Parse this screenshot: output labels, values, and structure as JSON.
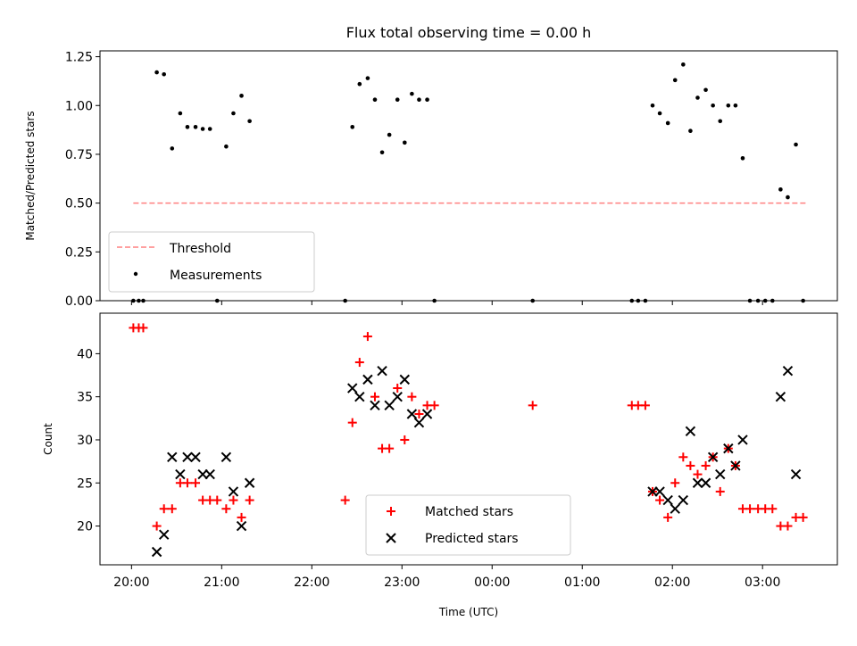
{
  "chart_data": [
    {
      "type": "scatter",
      "title": "Flux total observing time = 0.00 h",
      "xlabel": "",
      "ylabel": "Matched/Predicted stars",
      "x_unit": "time of day (UTC, hours; values above 24 are after midnight)",
      "xlim": [
        19.65,
        27.83
      ],
      "ylim": [
        0,
        1.28
      ],
      "x_ticks": [
        20,
        21,
        22,
        23,
        24,
        25,
        26,
        27
      ],
      "y_ticks": [
        0,
        0.25,
        0.5,
        0.75,
        1.0,
        1.25
      ],
      "y_tick_labels": [
        "0.00",
        "0.25",
        "0.50",
        "0.75",
        "1.00",
        "1.25"
      ],
      "legend_position": "lower-left",
      "series": [
        {
          "name": "Threshold",
          "style": "dashed-line",
          "color": "#ff8080",
          "points": [
            [
              20.02,
              0.5
            ],
            [
              27.48,
              0.5
            ]
          ]
        },
        {
          "name": "Measurements",
          "style": "dot",
          "color": "#000000",
          "points": [
            [
              20.02,
              0.0
            ],
            [
              20.08,
              0.0
            ],
            [
              20.13,
              0.0
            ],
            [
              20.28,
              1.17
            ],
            [
              20.36,
              1.16
            ],
            [
              20.45,
              0.78
            ],
            [
              20.54,
              0.96
            ],
            [
              20.62,
              0.89
            ],
            [
              20.71,
              0.89
            ],
            [
              20.79,
              0.88
            ],
            [
              20.87,
              0.88
            ],
            [
              20.95,
              0.0
            ],
            [
              21.05,
              0.79
            ],
            [
              21.13,
              0.96
            ],
            [
              21.22,
              1.05
            ],
            [
              21.31,
              0.92
            ],
            [
              22.37,
              0.0
            ],
            [
              22.45,
              0.89
            ],
            [
              22.53,
              1.11
            ],
            [
              22.62,
              1.14
            ],
            [
              22.7,
              1.03
            ],
            [
              22.78,
              0.76
            ],
            [
              22.86,
              0.85
            ],
            [
              22.95,
              1.03
            ],
            [
              23.03,
              0.81
            ],
            [
              23.11,
              1.06
            ],
            [
              23.19,
              1.03
            ],
            [
              23.28,
              1.03
            ],
            [
              23.36,
              0.0
            ],
            [
              24.45,
              0.0
            ],
            [
              25.55,
              0.0
            ],
            [
              25.62,
              0.0
            ],
            [
              25.7,
              0.0
            ],
            [
              25.78,
              1.0
            ],
            [
              25.86,
              0.96
            ],
            [
              25.95,
              0.91
            ],
            [
              26.03,
              1.13
            ],
            [
              26.12,
              1.21
            ],
            [
              26.2,
              0.87
            ],
            [
              26.28,
              1.04
            ],
            [
              26.37,
              1.08
            ],
            [
              26.45,
              1.0
            ],
            [
              26.53,
              0.92
            ],
            [
              26.62,
              1.0
            ],
            [
              26.7,
              1.0
            ],
            [
              26.78,
              0.73
            ],
            [
              26.86,
              0.0
            ],
            [
              26.95,
              0.0
            ],
            [
              27.03,
              0.0
            ],
            [
              27.11,
              0.0
            ],
            [
              27.2,
              0.57
            ],
            [
              27.28,
              0.53
            ],
            [
              27.37,
              0.8
            ],
            [
              27.45,
              0.0
            ]
          ]
        }
      ]
    },
    {
      "type": "scatter",
      "title": "",
      "xlabel": "Time (UTC)",
      "ylabel": "Count",
      "x_unit": "time of day (UTC, hours; values above 24 are after midnight)",
      "xlim": [
        19.65,
        27.83
      ],
      "ylim": [
        15.5,
        44.7
      ],
      "x_ticks": [
        20,
        21,
        22,
        23,
        24,
        25,
        26,
        27
      ],
      "x_tick_labels": [
        "20:00",
        "21:00",
        "22:00",
        "23:00",
        "00:00",
        "01:00",
        "02:00",
        "03:00"
      ],
      "y_ticks": [
        20,
        25,
        30,
        35,
        40
      ],
      "y_tick_labels": [
        "20",
        "25",
        "30",
        "35",
        "40"
      ],
      "legend_position": "lower-center",
      "series": [
        {
          "name": "Matched stars",
          "style": "plus",
          "color": "#ff0000",
          "points": [
            [
              20.02,
              43
            ],
            [
              20.08,
              43
            ],
            [
              20.13,
              43
            ],
            [
              20.28,
              20
            ],
            [
              20.36,
              22
            ],
            [
              20.45,
              22
            ],
            [
              20.54,
              25
            ],
            [
              20.62,
              25
            ],
            [
              20.71,
              25
            ],
            [
              20.79,
              23
            ],
            [
              20.87,
              23
            ],
            [
              20.95,
              23
            ],
            [
              21.05,
              22
            ],
            [
              21.13,
              23
            ],
            [
              21.22,
              21
            ],
            [
              21.31,
              23
            ],
            [
              22.37,
              23
            ],
            [
              22.45,
              32
            ],
            [
              22.53,
              39
            ],
            [
              22.62,
              42
            ],
            [
              22.7,
              35
            ],
            [
              22.78,
              29
            ],
            [
              22.86,
              29
            ],
            [
              22.95,
              36
            ],
            [
              23.03,
              30
            ],
            [
              23.11,
              35
            ],
            [
              23.19,
              33
            ],
            [
              23.28,
              34
            ],
            [
              23.36,
              34
            ],
            [
              24.45,
              34
            ],
            [
              25.55,
              34
            ],
            [
              25.62,
              34
            ],
            [
              25.7,
              34
            ],
            [
              25.78,
              24
            ],
            [
              25.86,
              23
            ],
            [
              25.95,
              21
            ],
            [
              26.03,
              25
            ],
            [
              26.12,
              28
            ],
            [
              26.2,
              27
            ],
            [
              26.28,
              26
            ],
            [
              26.37,
              27
            ],
            [
              26.45,
              28
            ],
            [
              26.53,
              24
            ],
            [
              26.62,
              29
            ],
            [
              26.7,
              27
            ],
            [
              26.78,
              22
            ],
            [
              26.86,
              22
            ],
            [
              26.95,
              22
            ],
            [
              27.03,
              22
            ],
            [
              27.11,
              22
            ],
            [
              27.2,
              20
            ],
            [
              27.28,
              20
            ],
            [
              27.37,
              21
            ],
            [
              27.45,
              21
            ]
          ]
        },
        {
          "name": "Predicted stars",
          "style": "x",
          "color": "#000000",
          "points": [
            [
              20.28,
              17
            ],
            [
              20.36,
              19
            ],
            [
              20.45,
              28
            ],
            [
              20.54,
              26
            ],
            [
              20.62,
              28
            ],
            [
              20.71,
              28
            ],
            [
              20.79,
              26
            ],
            [
              20.87,
              26
            ],
            [
              21.05,
              28
            ],
            [
              21.13,
              24
            ],
            [
              21.22,
              20
            ],
            [
              21.31,
              25
            ],
            [
              22.45,
              36
            ],
            [
              22.53,
              35
            ],
            [
              22.62,
              37
            ],
            [
              22.7,
              34
            ],
            [
              22.78,
              38
            ],
            [
              22.86,
              34
            ],
            [
              22.95,
              35
            ],
            [
              23.03,
              37
            ],
            [
              23.11,
              33
            ],
            [
              23.19,
              32
            ],
            [
              23.28,
              33
            ],
            [
              25.78,
              24
            ],
            [
              25.86,
              24
            ],
            [
              25.95,
              23
            ],
            [
              26.03,
              22
            ],
            [
              26.12,
              23
            ],
            [
              26.2,
              31
            ],
            [
              26.28,
              25
            ],
            [
              26.37,
              25
            ],
            [
              26.45,
              28
            ],
            [
              26.53,
              26
            ],
            [
              26.62,
              29
            ],
            [
              26.7,
              27
            ],
            [
              26.78,
              30
            ],
            [
              27.2,
              35
            ],
            [
              27.28,
              38
            ],
            [
              27.37,
              26
            ]
          ]
        }
      ]
    }
  ]
}
